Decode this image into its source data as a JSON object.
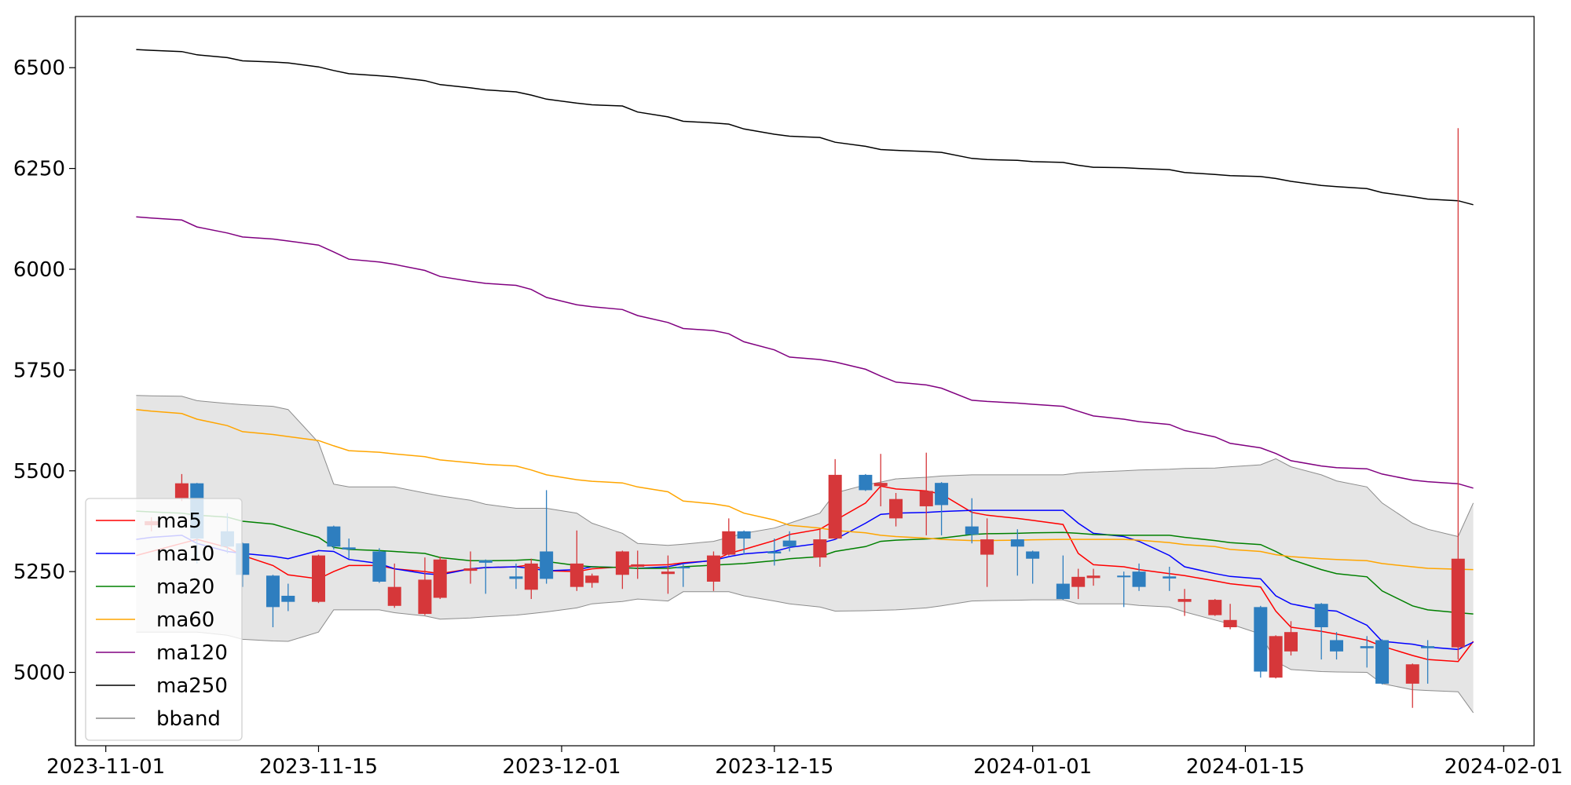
{
  "chart_data": {
    "type": "candlestick",
    "x": [
      "2023-11-03",
      "2023-11-04",
      "2023-11-06",
      "2023-11-07",
      "2023-11-09",
      "2023-11-10",
      "2023-11-12",
      "2023-11-13",
      "2023-11-15",
      "2023-11-16",
      "2023-11-17",
      "2023-11-19",
      "2023-11-20",
      "2023-11-22",
      "2023-11-23",
      "2023-11-25",
      "2023-11-26",
      "2023-11-28",
      "2023-11-29",
      "2023-11-30",
      "2023-12-02",
      "2023-12-03",
      "2023-12-05",
      "2023-12-06",
      "2023-12-08",
      "2023-12-09",
      "2023-12-11",
      "2023-12-12",
      "2023-12-13",
      "2023-12-15",
      "2023-12-16",
      "2023-12-18",
      "2023-12-19",
      "2023-12-21",
      "2023-12-22",
      "2023-12-23",
      "2023-12-25",
      "2023-12-26",
      "2023-12-28",
      "2023-12-29",
      "2023-12-31",
      "2024-01-01",
      "2024-01-03",
      "2024-01-04",
      "2024-01-05",
      "2024-01-07",
      "2024-01-08",
      "2024-01-10",
      "2024-01-11",
      "2024-01-13",
      "2024-01-14",
      "2024-01-16",
      "2024-01-17",
      "2024-01-18",
      "2024-01-20",
      "2024-01-21",
      "2024-01-23",
      "2024-01-24",
      "2024-01-26",
      "2024-01-27",
      "2024-01-29",
      "2024-01-30"
    ],
    "candles": {
      "up_color": "#d6373a",
      "down_color": "#2e7ebf",
      "open": [
        null,
        5365,
        5432,
        5469,
        5350,
        5320,
        5240,
        5190,
        5175,
        5362,
        5310,
        5300,
        5165,
        5145,
        5185,
        5252,
        5278,
        5238,
        5205,
        5300,
        5212,
        5222,
        5242,
        5262,
        5244,
        5262,
        5225,
        5292,
        5350,
        5300,
        5327,
        5285,
        5332,
        5490,
        5462,
        5382,
        5412,
        5470,
        5362,
        5292,
        5330,
        5300,
        5220,
        5212,
        5234,
        5240,
        5250,
        5238,
        5175,
        5142,
        5112,
        5162,
        4987,
        5052,
        5170,
        5080,
        5065,
        5080,
        4972,
        5065,
        5062,
        null
      ],
      "high": [
        null,
        5385,
        5492,
        5470,
        5395,
        5322,
        5242,
        5220,
        5292,
        5364,
        5332,
        5308,
        5270,
        5285,
        5287,
        5300,
        5280,
        5270,
        5282,
        5452,
        5352,
        5245,
        5302,
        5302,
        5290,
        5270,
        5300,
        5382,
        5352,
        5332,
        5350,
        5357,
        5529,
        5492,
        5542,
        5445,
        5545,
        5472,
        5432,
        5382,
        5355,
        5302,
        5290,
        5257,
        5257,
        5250,
        5270,
        5262,
        5207,
        5182,
        5170,
        5165,
        5092,
        5127,
        5172,
        5100,
        5090,
        5082,
        5022,
        5080,
        6350,
        null
      ],
      "low": [
        null,
        5350,
        5425,
        5270,
        5295,
        5212,
        5112,
        5152,
        5172,
        5305,
        5282,
        5222,
        5160,
        5142,
        5182,
        5220,
        5195,
        5207,
        5182,
        5220,
        5202,
        5210,
        5207,
        5232,
        5195,
        5212,
        5202,
        5290,
        5292,
        5265,
        5300,
        5262,
        5330,
        5450,
        5412,
        5362,
        5340,
        5340,
        5320,
        5212,
        5240,
        5220,
        5180,
        5182,
        5215,
        5162,
        5202,
        5202,
        5140,
        5140,
        5107,
        4987,
        4985,
        5042,
        5032,
        5032,
        5012,
        4970,
        4912,
        4972,
        5032,
        null
      ],
      "close": [
        null,
        5375,
        5469,
        5332,
        5312,
        5242,
        5162,
        5175,
        5290,
        5312,
        5305,
        5225,
        5212,
        5230,
        5280,
        5258,
        5272,
        5232,
        5270,
        5232,
        5270,
        5240,
        5300,
        5268,
        5250,
        5258,
        5290,
        5350,
        5332,
        5295,
        5312,
        5330,
        5490,
        5452,
        5470,
        5430,
        5450,
        5415,
        5342,
        5330,
        5312,
        5282,
        5182,
        5237,
        5240,
        5236,
        5212,
        5233,
        5182,
        5180,
        5130,
        5002,
        5090,
        5100,
        5112,
        5052,
        5060,
        4972,
        5020,
        5060,
        5282,
        null
      ]
    },
    "series": [
      {
        "name": "ma5",
        "color": "red",
        "values": [
          5290,
          5300,
          5320,
          5330,
          5310,
          5290,
          5265,
          5242,
          5232,
          5250,
          5265,
          5265,
          5257,
          5250,
          5245,
          5257,
          5260,
          5262,
          5267,
          5252,
          5250,
          5257,
          5262,
          5265,
          5267,
          5272,
          5277,
          5295,
          5305,
          5327,
          5342,
          5355,
          5377,
          5420,
          5462,
          5455,
          5450,
          5442,
          5397,
          5390,
          5382,
          5377,
          5367,
          5295,
          5267,
          5262,
          5255,
          5245,
          5240,
          5227,
          5220,
          5212,
          5152,
          5112,
          5102,
          5095,
          5080,
          5065,
          5042,
          5032,
          5027,
          5077
        ]
      },
      {
        "name": "ma10",
        "color": "blue",
        "values": [
          5330,
          5335,
          5340,
          5320,
          5300,
          5295,
          5288,
          5282,
          5302,
          5300,
          5280,
          5270,
          5257,
          5245,
          5242,
          5257,
          5260,
          5262,
          5258,
          5252,
          5255,
          5262,
          5260,
          5258,
          5262,
          5270,
          5278,
          5287,
          5294,
          5300,
          5310,
          5320,
          5330,
          5370,
          5392,
          5395,
          5397,
          5399,
          5402,
          5402,
          5402,
          5402,
          5402,
          5370,
          5345,
          5337,
          5325,
          5290,
          5262,
          5245,
          5238,
          5232,
          5190,
          5170,
          5155,
          5152,
          5117,
          5077,
          5070,
          5063,
          5057,
          5075
        ]
      },
      {
        "name": "ma20",
        "color": "green",
        "values": [
          5400,
          5398,
          5395,
          5390,
          5385,
          5375,
          5368,
          5357,
          5335,
          5310,
          5305,
          5302,
          5300,
          5295,
          5285,
          5277,
          5277,
          5278,
          5280,
          5275,
          5265,
          5262,
          5260,
          5258,
          5258,
          5262,
          5266,
          5268,
          5270,
          5277,
          5282,
          5287,
          5300,
          5312,
          5325,
          5328,
          5331,
          5333,
          5342,
          5344,
          5345,
          5346,
          5347,
          5345,
          5342,
          5340,
          5340,
          5340,
          5335,
          5327,
          5322,
          5317,
          5300,
          5280,
          5255,
          5245,
          5237,
          5202,
          5165,
          5155,
          5148,
          5145
        ]
      },
      {
        "name": "ma60",
        "color": "orange",
        "values": [
          5652,
          5648,
          5642,
          5628,
          5612,
          5597,
          5590,
          5585,
          5575,
          5562,
          5550,
          5546,
          5542,
          5535,
          5527,
          5520,
          5516,
          5512,
          5502,
          5490,
          5478,
          5474,
          5470,
          5460,
          5448,
          5425,
          5418,
          5412,
          5395,
          5378,
          5365,
          5358,
          5352,
          5346,
          5340,
          5337,
          5333,
          5330,
          5327,
          5327,
          5328,
          5329,
          5330,
          5330,
          5330,
          5330,
          5328,
          5322,
          5317,
          5312,
          5305,
          5300,
          5292,
          5287,
          5282,
          5280,
          5277,
          5270,
          5262,
          5258,
          5256,
          5255
        ]
      },
      {
        "name": "ma120",
        "color": "purple",
        "values": [
          6130,
          6127,
          6122,
          6105,
          6090,
          6080,
          6075,
          6070,
          6060,
          6043,
          6025,
          6018,
          6012,
          5997,
          5982,
          5970,
          5965,
          5960,
          5950,
          5930,
          5912,
          5907,
          5900,
          5885,
          5868,
          5853,
          5848,
          5840,
          5820,
          5800,
          5782,
          5776,
          5770,
          5752,
          5735,
          5720,
          5713,
          5705,
          5675,
          5672,
          5668,
          5665,
          5660,
          5648,
          5636,
          5628,
          5622,
          5615,
          5600,
          5584,
          5568,
          5557,
          5543,
          5525,
          5512,
          5508,
          5505,
          5492,
          5477,
          5473,
          5468,
          5457
        ]
      },
      {
        "name": "ma250",
        "color": "black",
        "values": [
          6545,
          6543,
          6540,
          6532,
          6525,
          6517,
          6514,
          6512,
          6502,
          6493,
          6485,
          6480,
          6477,
          6468,
          6458,
          6450,
          6445,
          6440,
          6432,
          6422,
          6412,
          6408,
          6405,
          6390,
          6378,
          6367,
          6363,
          6360,
          6348,
          6335,
          6330,
          6327,
          6315,
          6305,
          6297,
          6295,
          6292,
          6290,
          6275,
          6272,
          6270,
          6267,
          6265,
          6258,
          6253,
          6252,
          6250,
          6247,
          6240,
          6235,
          6232,
          6230,
          6225,
          6218,
          6208,
          6205,
          6200,
          6190,
          6180,
          6174,
          6170,
          6160
        ]
      }
    ],
    "bands": [
      {
        "name": "bband",
        "color": "#8c8c8c",
        "fill": "#e5e5e5",
        "upper": [
          5687,
          5686,
          5685,
          5674,
          5667,
          5664,
          5660,
          5652,
          5570,
          5467,
          5460,
          5460,
          5460,
          5445,
          5438,
          5427,
          5417,
          5407,
          5407,
          5407,
          5395,
          5370,
          5345,
          5320,
          5315,
          5318,
          5325,
          5335,
          5345,
          5358,
          5370,
          5395,
          5445,
          5465,
          5472,
          5480,
          5484,
          5487,
          5490,
          5490,
          5490,
          5490,
          5490,
          5495,
          5497,
          5500,
          5502,
          5504,
          5506,
          5507,
          5510,
          5515,
          5530,
          5510,
          5490,
          5475,
          5460,
          5420,
          5370,
          5355,
          5337,
          5420
        ],
        "lower": [
          5100,
          5100,
          5100,
          5100,
          5092,
          5082,
          5078,
          5077,
          5100,
          5155,
          5155,
          5155,
          5148,
          5140,
          5132,
          5135,
          5138,
          5142,
          5146,
          5150,
          5160,
          5170,
          5176,
          5182,
          5177,
          5200,
          5200,
          5200,
          5190,
          5177,
          5170,
          5162,
          5152,
          5153,
          5154,
          5155,
          5160,
          5165,
          5177,
          5178,
          5179,
          5180,
          5180,
          5170,
          5170,
          5170,
          5166,
          5162,
          5150,
          5130,
          5120,
          5095,
          5027,
          5007,
          5002,
          5001,
          5000,
          4972,
          4957,
          4955,
          4952,
          4900
        ]
      }
    ],
    "xlim": [
      "2023-10-30",
      "2024-02-03"
    ],
    "xticks": [
      "2023-11-01",
      "2023-11-15",
      "2023-12-01",
      "2023-12-15",
      "2024-01-01",
      "2024-01-15",
      "2024-02-01"
    ],
    "ylim": [
      4818,
      6627
    ],
    "yticks": [
      5000,
      5250,
      5500,
      5750,
      6000,
      6250,
      6500
    ],
    "legend": "lower left"
  }
}
